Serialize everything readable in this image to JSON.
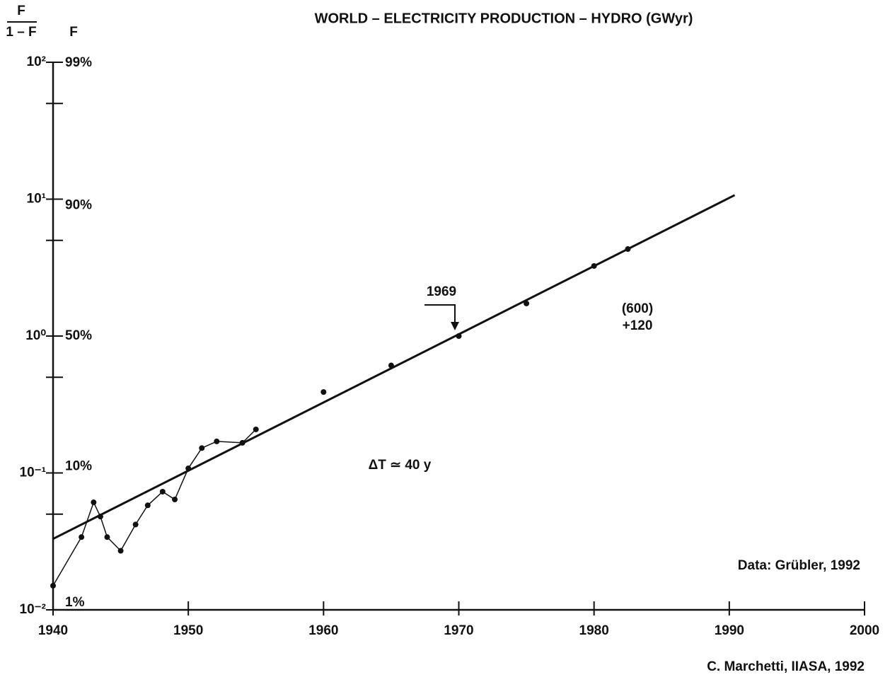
{
  "chart_data": {
    "type": "line",
    "title": "WORLD – ELECTRICITY PRODUCTION – HYDRO (GWyr)",
    "ylabel": {
      "numerator": "F",
      "denominator": "1 – F"
    },
    "y2label": "F",
    "ylog": true,
    "y2scale": "logit",
    "xlim": [
      1940,
      2000
    ],
    "xticks": [
      1940,
      1950,
      1960,
      1970,
      1980,
      1990,
      2000
    ],
    "ylim": [
      0.01,
      100
    ],
    "yticks": [
      {
        "value": 100,
        "label": "10²"
      },
      {
        "value": 10,
        "label": "10¹"
      },
      {
        "value": 1,
        "label": "10⁰"
      },
      {
        "value": 0.1,
        "label": "10⁻¹"
      },
      {
        "value": 0.01,
        "label": "10⁻²"
      }
    ],
    "yminorticks": [
      50,
      5,
      0.5,
      0.05
    ],
    "y2ticks": [
      {
        "value": 99,
        "label": "99%"
      },
      {
        "value": 90,
        "label": "90%"
      },
      {
        "value": 50,
        "label": "50%"
      },
      {
        "value": 10,
        "label": "10%"
      },
      {
        "value": 1,
        "label": "1%"
      }
    ],
    "color": "#111111",
    "series": [
      {
        "style": "connected",
        "x": [
          1940,
          1942.1,
          1943,
          1943.5,
          1944,
          1945,
          1946.1,
          1947,
          1948.1,
          1949,
          1950,
          1951,
          1952.1,
          1954,
          1955
        ],
        "values": [
          0.015,
          0.034,
          0.061,
          0.048,
          0.034,
          0.027,
          0.042,
          0.058,
          0.073,
          0.064,
          0.108,
          0.152,
          0.17,
          0.166,
          0.208
        ]
      },
      {
        "style": "points",
        "x": [
          1960,
          1965,
          1970,
          1975,
          1980,
          1982.5
        ],
        "values": [
          0.39,
          0.61,
          1.0,
          1.73,
          3.25,
          4.32
        ]
      },
      {
        "style": "fit",
        "x": [
          1940,
          1990.4
        ],
        "values": [
          0.033,
          10.7
        ]
      }
    ],
    "annotations": [
      "1969",
      "(600)",
      "+120",
      "ΔT ≃ 40 y",
      "Data: Grübler, 1992",
      "C. Marchetti, IIASA, 1992"
    ]
  }
}
